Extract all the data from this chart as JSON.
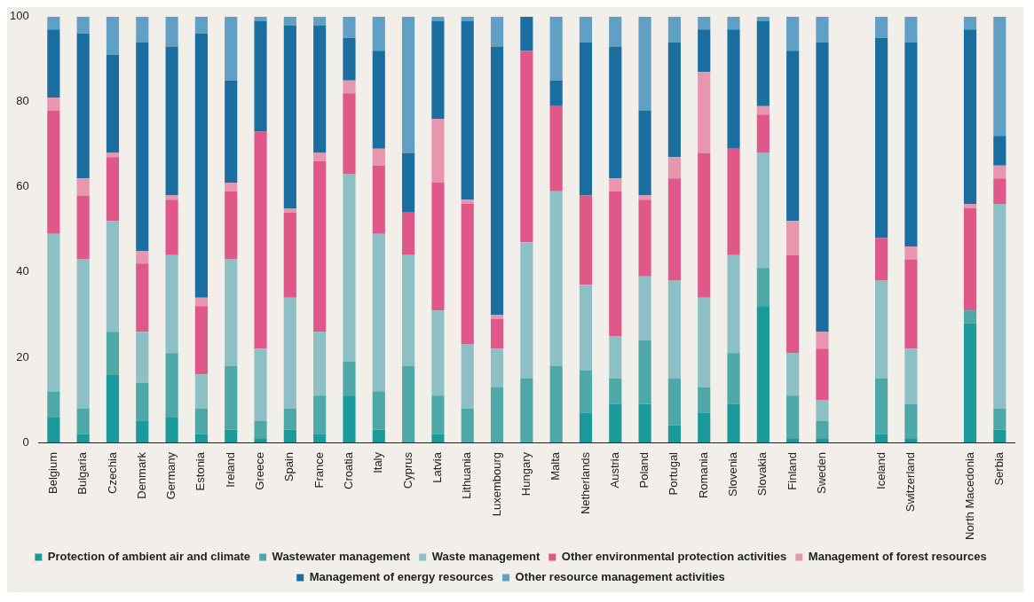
{
  "chart_data": {
    "type": "bar",
    "stacked": true,
    "categories": [
      "Belgium",
      "Bulgaria",
      "Czechia",
      "Denmark",
      "Germany",
      "Estonia",
      "Ireland",
      "Greece",
      "Spain",
      "France",
      "Croatia",
      "Italy",
      "Cyprus",
      "Latvia",
      "Lithuania",
      "Luxembourg",
      "Hungary",
      "Malta",
      "Netherlands",
      "Austria",
      "Poland",
      "Portugal",
      "Romania",
      "Slovenia",
      "Slovakia",
      "Finland",
      "Sweden",
      null,
      "Iceland",
      "Switzerland",
      null,
      "North Macedonia",
      "Serbia"
    ],
    "ylim": [
      0,
      100
    ],
    "yticks": [
      0,
      20,
      40,
      60,
      80,
      100
    ],
    "grid": false,
    "legend": "bottom",
    "series": [
      {
        "name": "Protection of ambient air and climate",
        "color": "#1a9a9a",
        "values": [
          6,
          2,
          16,
          5,
          6,
          2,
          3,
          1,
          3,
          2,
          11,
          3,
          0,
          2,
          0,
          0,
          0,
          0,
          7,
          9,
          9,
          4,
          7,
          9,
          32,
          1,
          1,
          null,
          2,
          1,
          null,
          28,
          3
        ]
      },
      {
        "name": "Wastewater management",
        "color": "#4fa8a8",
        "values": [
          6,
          6,
          10,
          9,
          15,
          6,
          15,
          4,
          5,
          9,
          8,
          9,
          18,
          9,
          8,
          13,
          15,
          18,
          10,
          6,
          15,
          11,
          6,
          12,
          9,
          10,
          4,
          null,
          13,
          8,
          null,
          3,
          5
        ]
      },
      {
        "name": "Waste management",
        "color": "#8cc0c4",
        "values": [
          37,
          35,
          26,
          12,
          23,
          8,
          25,
          17,
          26,
          15,
          44,
          37,
          26,
          20,
          15,
          9,
          32,
          41,
          20,
          10,
          15,
          23,
          21,
          23,
          27,
          10,
          5,
          null,
          23,
          13,
          null,
          0,
          48
        ]
      },
      {
        "name": "Other environmental protection activities",
        "color": "#e0588a",
        "values": [
          29,
          15,
          15,
          16,
          13,
          16,
          16,
          51,
          20,
          40,
          19,
          16,
          10,
          30,
          33,
          7,
          45,
          20,
          21,
          34,
          18,
          24,
          34,
          25,
          9,
          23,
          12,
          null,
          10,
          21,
          null,
          24,
          6
        ]
      },
      {
        "name": "Management of forest resources",
        "color": "#e896b0",
        "values": [
          3,
          4,
          1,
          3,
          1,
          2,
          2,
          0,
          1,
          2,
          3,
          4,
          0,
          15,
          1,
          1,
          0,
          0,
          0,
          3,
          1,
          5,
          19,
          0,
          2,
          8,
          4,
          null,
          0,
          3,
          null,
          1,
          3
        ]
      },
      {
        "name": "Management of energy resources",
        "color": "#1a6fa0",
        "values": [
          16,
          34,
          23,
          49,
          35,
          62,
          24,
          26,
          43,
          30,
          10,
          23,
          14,
          23,
          42,
          63,
          8,
          6,
          36,
          31,
          20,
          27,
          10,
          28,
          20,
          40,
          68,
          null,
          47,
          48,
          null,
          41,
          7
        ]
      },
      {
        "name": "Other resource management activities",
        "color": "#5fa0c4",
        "values": [
          3,
          4,
          9,
          6,
          7,
          4,
          15,
          1,
          2,
          2,
          5,
          8,
          32,
          1,
          1,
          7,
          0,
          15,
          6,
          7,
          22,
          6,
          3,
          3,
          1,
          8,
          6,
          null,
          5,
          6,
          null,
          3,
          28
        ]
      }
    ]
  }
}
